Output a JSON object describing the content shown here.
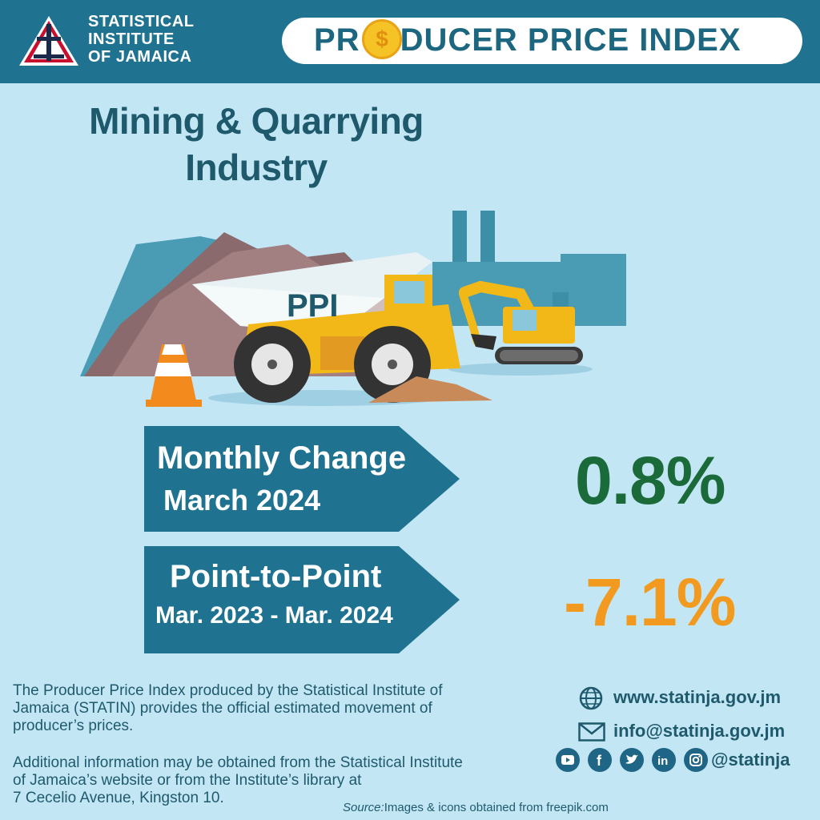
{
  "header": {
    "org_line1": "STATISTICAL",
    "org_line2": "INSTITUTE",
    "org_line3": "OF JAMAICA",
    "title_prefix": "PR",
    "title_suffix": "DUCER PRICE INDEX",
    "coin_symbol": "$"
  },
  "industry": {
    "line1": "Mining & Quarrying",
    "line2": "Industry"
  },
  "illustration": {
    "truck_label": "PPI"
  },
  "monthly": {
    "label_line1": "Monthly Change",
    "label_line2": "March 2024",
    "value": "0.8%"
  },
  "point_to_point": {
    "label_line1": "Point-to-Point",
    "label_line2": "Mar. 2023 - Mar. 2024",
    "value": "-7.1%"
  },
  "description": {
    "p1_line1": "The Producer Price Index produced by the Statistical Institute of",
    "p1_line2": "Jamaica (STATIN) provides the official estimated movement of",
    "p1_line3": "producer’s prices.",
    "p2_line1": "Additional information may be obtained from the Statistical Institute",
    "p2_line2": "of Jamaica’s website or from the  Institute’s library at",
    "p2_line3": "7 Cecelio Avenue, Kingston 10."
  },
  "contact": {
    "website": "www.statinja.gov.jm",
    "email": "info@statinja.gov.jm",
    "handle": "@statinja",
    "socials": [
      "youtube-icon",
      "facebook-icon",
      "twitter-icon",
      "linkedin-icon",
      "instagram-icon"
    ]
  },
  "source": {
    "label": "Source:",
    "text": "Images & icons obtained from freepik.com"
  },
  "colors": {
    "header_bg": "#1f7390",
    "page_bg": "#c3e6f5",
    "arrow_bg": "#1f7390",
    "monthly_value": "#1b6b3a",
    "ptp_value": "#f29a1f"
  }
}
